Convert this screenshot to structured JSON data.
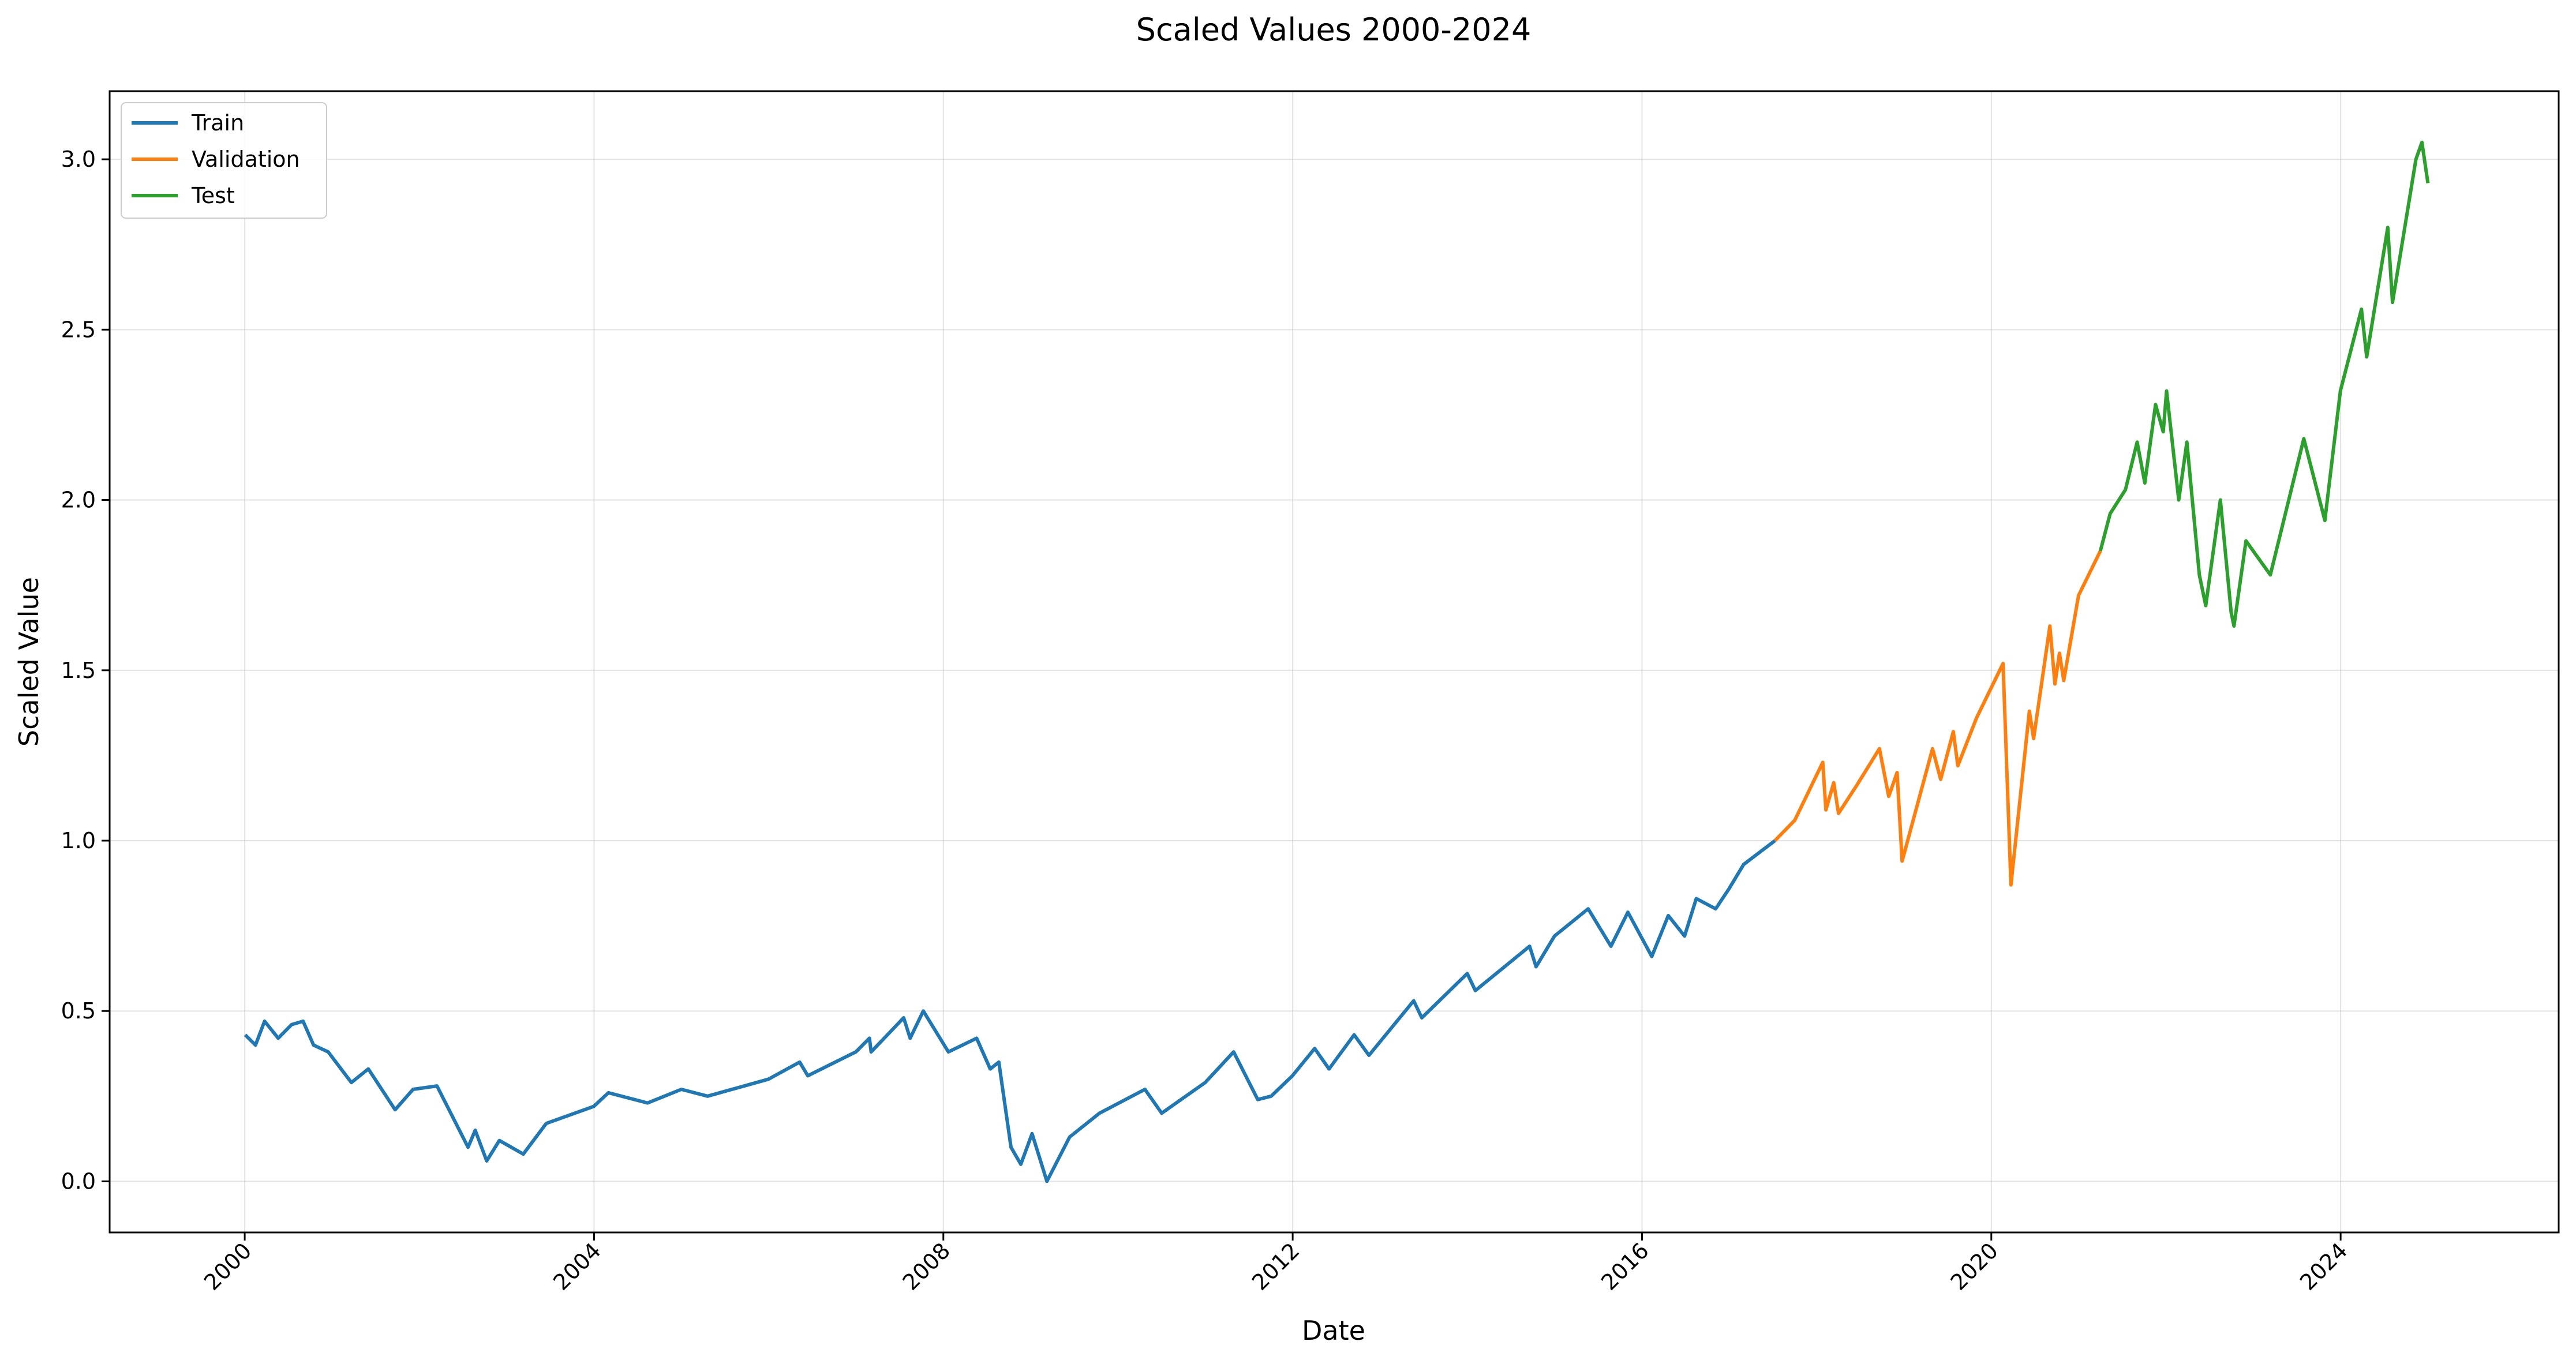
{
  "chart_data": {
    "type": "line",
    "title": "Scaled Values 2000-2024",
    "xlabel": "Date",
    "ylabel": "Scaled Value",
    "xlim": [
      "1998-06-15",
      "2026-07-01"
    ],
    "ylim": [
      -0.15,
      3.2
    ],
    "x_ticks": [
      "2000",
      "2004",
      "2008",
      "2012",
      "2016",
      "2020",
      "2024"
    ],
    "y_ticks": [
      "0.0",
      "0.5",
      "1.0",
      "1.5",
      "2.0",
      "2.5",
      "3.0"
    ],
    "grid": true,
    "legend": "top-left",
    "series": [
      {
        "name": "Train",
        "color": "#1f77b4",
        "points": [
          [
            "2000-01-03",
            0.43
          ],
          [
            "2000-02-15",
            0.4
          ],
          [
            "2000-03-24",
            0.47
          ],
          [
            "2000-05-20",
            0.42
          ],
          [
            "2000-07-15",
            0.46
          ],
          [
            "2000-09-01",
            0.47
          ],
          [
            "2000-10-15",
            0.4
          ],
          [
            "2000-12-15",
            0.38
          ],
          [
            "2001-03-22",
            0.29
          ],
          [
            "2001-06-01",
            0.33
          ],
          [
            "2001-09-21",
            0.21
          ],
          [
            "2001-12-05",
            0.27
          ],
          [
            "2002-03-15",
            0.28
          ],
          [
            "2002-07-23",
            0.1
          ],
          [
            "2002-08-22",
            0.15
          ],
          [
            "2002-10-09",
            0.06
          ],
          [
            "2002-12-01",
            0.12
          ],
          [
            "2003-03-11",
            0.08
          ],
          [
            "2003-06-15",
            0.17
          ],
          [
            "2003-12-31",
            0.22
          ],
          [
            "2004-03-01",
            0.26
          ],
          [
            "2004-08-12",
            0.23
          ],
          [
            "2004-12-31",
            0.27
          ],
          [
            "2005-04-20",
            0.25
          ],
          [
            "2005-12-31",
            0.3
          ],
          [
            "2006-05-10",
            0.35
          ],
          [
            "2006-06-13",
            0.31
          ],
          [
            "2006-12-31",
            0.38
          ],
          [
            "2007-02-26",
            0.42
          ],
          [
            "2007-03-05",
            0.38
          ],
          [
            "2007-07-19",
            0.48
          ],
          [
            "2007-08-15",
            0.42
          ],
          [
            "2007-10-09",
            0.5
          ],
          [
            "2008-01-22",
            0.38
          ],
          [
            "2008-05-19",
            0.42
          ],
          [
            "2008-07-15",
            0.33
          ],
          [
            "2008-08-20",
            0.35
          ],
          [
            "2008-10-10",
            0.1
          ],
          [
            "2008-11-20",
            0.05
          ],
          [
            "2009-01-06",
            0.14
          ],
          [
            "2009-03-09",
            0.0
          ],
          [
            "2009-06-12",
            0.13
          ],
          [
            "2009-10-15",
            0.2
          ],
          [
            "2010-04-23",
            0.27
          ],
          [
            "2010-07-02",
            0.2
          ],
          [
            "2010-12-31",
            0.29
          ],
          [
            "2011-04-29",
            0.38
          ],
          [
            "2011-08-08",
            0.24
          ],
          [
            "2011-10-03",
            0.25
          ],
          [
            "2011-12-31",
            0.31
          ],
          [
            "2012-04-02",
            0.39
          ],
          [
            "2012-06-01",
            0.33
          ],
          [
            "2012-09-14",
            0.43
          ],
          [
            "2012-11-15",
            0.37
          ],
          [
            "2013-05-21",
            0.53
          ],
          [
            "2013-06-24",
            0.48
          ],
          [
            "2013-12-31",
            0.61
          ],
          [
            "2014-02-03",
            0.56
          ],
          [
            "2014-09-18",
            0.69
          ],
          [
            "2014-10-15",
            0.63
          ],
          [
            "2014-12-31",
            0.72
          ],
          [
            "2015-05-21",
            0.8
          ],
          [
            "2015-08-24",
            0.69
          ],
          [
            "2015-11-03",
            0.79
          ],
          [
            "2016-02-11",
            0.66
          ],
          [
            "2016-04-20",
            0.78
          ],
          [
            "2016-06-27",
            0.72
          ],
          [
            "2016-08-15",
            0.83
          ],
          [
            "2016-11-04",
            0.8
          ],
          [
            "2016-12-31",
            0.86
          ],
          [
            "2017-03-01",
            0.93
          ],
          [
            "2017-07-10",
            1.0
          ]
        ]
      },
      {
        "name": "Validation",
        "color": "#ff7f0e",
        "points": [
          [
            "2017-07-10",
            1.0
          ],
          [
            "2017-10-01",
            1.06
          ],
          [
            "2018-01-26",
            1.23
          ],
          [
            "2018-02-08",
            1.09
          ],
          [
            "2018-03-13",
            1.17
          ],
          [
            "2018-04-02",
            1.08
          ],
          [
            "2018-06-15",
            1.16
          ],
          [
            "2018-09-20",
            1.27
          ],
          [
            "2018-10-29",
            1.13
          ],
          [
            "2018-12-03",
            1.2
          ],
          [
            "2018-12-24",
            0.94
          ],
          [
            "2019-04-30",
            1.27
          ],
          [
            "2019-06-03",
            1.18
          ],
          [
            "2019-07-26",
            1.32
          ],
          [
            "2019-08-14",
            1.22
          ],
          [
            "2019-10-31",
            1.36
          ],
          [
            "2020-02-19",
            1.52
          ],
          [
            "2020-03-23",
            0.87
          ],
          [
            "2020-06-08",
            1.38
          ],
          [
            "2020-06-26",
            1.3
          ],
          [
            "2020-09-02",
            1.63
          ],
          [
            "2020-09-23",
            1.46
          ],
          [
            "2020-10-12",
            1.55
          ],
          [
            "2020-10-30",
            1.47
          ],
          [
            "2020-12-31",
            1.72
          ],
          [
            "2021-04-01",
            1.85
          ]
        ]
      },
      {
        "name": "Test",
        "color": "#2ca02c",
        "points": [
          [
            "2021-04-01",
            1.85
          ],
          [
            "2021-05-12",
            1.96
          ],
          [
            "2021-07-15",
            2.03
          ],
          [
            "2021-09-02",
            2.17
          ],
          [
            "2021-10-04",
            2.05
          ],
          [
            "2021-11-18",
            2.28
          ],
          [
            "2021-12-20",
            2.2
          ],
          [
            "2022-01-03",
            2.32
          ],
          [
            "2022-02-23",
            2.0
          ],
          [
            "2022-03-29",
            2.17
          ],
          [
            "2022-05-20",
            1.78
          ],
          [
            "2022-06-16",
            1.69
          ],
          [
            "2022-08-16",
            2.0
          ],
          [
            "2022-09-30",
            1.67
          ],
          [
            "2022-10-12",
            1.63
          ],
          [
            "2022-12-01",
            1.88
          ],
          [
            "2023-03-13",
            1.78
          ],
          [
            "2023-07-31",
            2.18
          ],
          [
            "2023-10-27",
            1.94
          ],
          [
            "2023-12-31",
            2.32
          ],
          [
            "2024-03-28",
            2.56
          ],
          [
            "2024-04-19",
            2.42
          ],
          [
            "2024-07-16",
            2.8
          ],
          [
            "2024-08-05",
            2.58
          ],
          [
            "2024-11-11",
            3.0
          ],
          [
            "2024-12-06",
            3.05
          ],
          [
            "2024-12-31",
            2.93
          ]
        ]
      }
    ]
  }
}
